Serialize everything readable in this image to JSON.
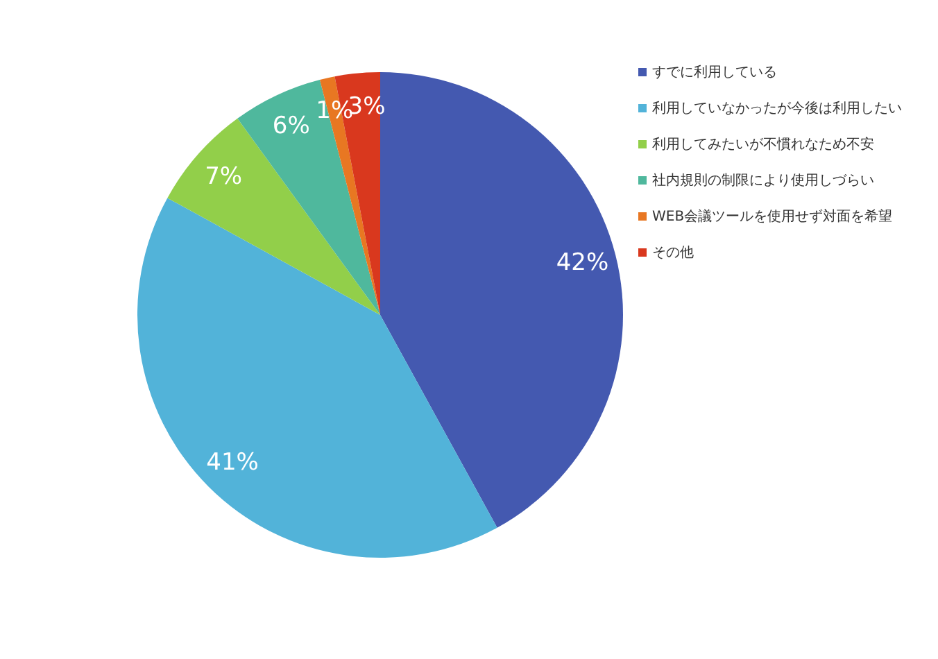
{
  "chart_data": {
    "type": "pie",
    "categories": [
      "すでに利用している",
      "利用していなかったが今後は利用したい",
      "利用してみたいが不慣れなため不安",
      "社内規則の制限により使用しづらい",
      "WEB会議ツールを使用せず対面を希望",
      "その他"
    ],
    "values": [
      42,
      41,
      7,
      6,
      1,
      3
    ],
    "colors": [
      "#4459b0",
      "#52b3d9",
      "#92cf4a",
      "#4fb89d",
      "#e87722",
      "#d9381e"
    ],
    "value_labels": [
      "42%",
      "41%",
      "7%",
      "6%",
      "1%",
      "3%"
    ],
    "legend": "top right"
  }
}
